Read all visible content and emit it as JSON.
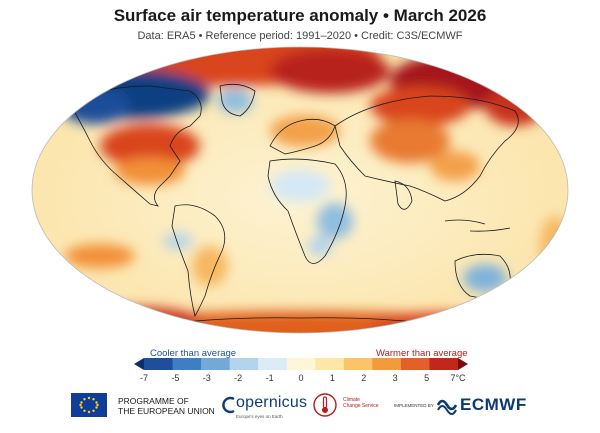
{
  "header": {
    "title": "Surface air temperature anomaly • March 2026",
    "subtitle": "Data: ERA5 • Reference period: 1991–2020 • Credit: C3S/ECMWF"
  },
  "legend": {
    "cooler_label": "Cooler than average",
    "warmer_label": "Warmer than average",
    "ticks": [
      "-7",
      "-5",
      "-3",
      "-2",
      "-1",
      "0",
      "1",
      "2",
      "3",
      "5",
      "7°C"
    ],
    "colors": [
      "#08306b",
      "#1f4e9a",
      "#3d7fc2",
      "#73a9d7",
      "#b4d3ec",
      "#dcecf7",
      "#fdf6d8",
      "#fde6a6",
      "#fdc46a",
      "#f39a3c",
      "#e2602a",
      "#c2271c",
      "#7f0a0a"
    ]
  },
  "footer": {
    "eu_line1": "PROGRAMME OF",
    "eu_line2": "THE EUROPEAN UNION",
    "copernicus": "opernicus",
    "copernicus_sub": "Europe's eyes on Earth",
    "c3s_line1": "Climate",
    "c3s_line2": "Change Service",
    "implemented": "IMPLEMENTED BY",
    "ecmwf": "ECMWF"
  }
}
